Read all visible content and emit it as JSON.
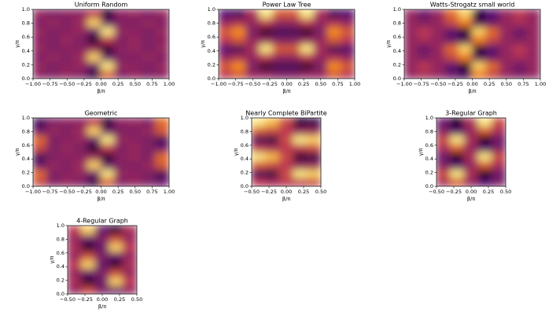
{
  "chart_data": [
    {
      "type": "heatmap",
      "title": "Uniform Random",
      "xlabel": "β/π",
      "ylabel": "γ/π",
      "cmap": "inferno",
      "zlim": [
        0,
        1
      ],
      "xlim": [
        -1,
        1
      ],
      "ylim": [
        0,
        1
      ],
      "xticks": [
        {
          "value": -1,
          "label": "−1.00"
        },
        {
          "value": -0.75,
          "label": "−0.75"
        },
        {
          "value": -0.5,
          "label": "−0.50"
        },
        {
          "value": -0.25,
          "label": "−0.25"
        },
        {
          "value": 0,
          "label": "0.00"
        },
        {
          "value": 0.25,
          "label": "0.25"
        },
        {
          "value": 0.5,
          "label": "0.50"
        },
        {
          "value": 0.75,
          "label": "0.75"
        },
        {
          "value": 1,
          "label": "1.00"
        }
      ],
      "yticks": [
        {
          "value": 0,
          "label": "0.0"
        },
        0.2,
        0.4,
        0.6,
        0.8,
        {
          "value": 1,
          "label": "1.0"
        }
      ],
      "z": [
        [
          0.38,
          0.35,
          0.4,
          0.35,
          0.15,
          0.6,
          0.35,
          0.4,
          0.35,
          0.38
        ],
        [
          0.4,
          0.35,
          0.38,
          0.4,
          0.3,
          0.95,
          0.4,
          0.38,
          0.35,
          0.4
        ],
        [
          0.36,
          0.4,
          0.35,
          0.42,
          0.9,
          0.3,
          0.35,
          0.36,
          0.4,
          0.36
        ],
        [
          0.4,
          0.35,
          0.38,
          0.38,
          0.4,
          0.1,
          0.38,
          0.4,
          0.35,
          0.4
        ],
        [
          0.38,
          0.35,
          0.4,
          0.35,
          0.1,
          0.5,
          0.35,
          0.4,
          0.35,
          0.38
        ],
        [
          0.4,
          0.35,
          0.38,
          0.4,
          0.3,
          0.95,
          0.4,
          0.38,
          0.35,
          0.4
        ],
        [
          0.36,
          0.4,
          0.35,
          0.42,
          0.9,
          0.3,
          0.35,
          0.36,
          0.4,
          0.36
        ],
        [
          0.4,
          0.35,
          0.38,
          0.38,
          0.5,
          0.1,
          0.38,
          0.4,
          0.35,
          0.4
        ]
      ]
    },
    {
      "type": "heatmap",
      "title": "Power Law Tree",
      "xlabel": "β/π",
      "ylabel": "γ/π",
      "cmap": "inferno",
      "zlim": [
        0,
        1
      ],
      "xlim": [
        -1,
        1
      ],
      "ylim": [
        0,
        1
      ],
      "xticks": [
        {
          "value": -1,
          "label": "−1.00"
        },
        {
          "value": -0.75,
          "label": "−0.75"
        },
        {
          "value": -0.5,
          "label": "−0.50"
        },
        {
          "value": -0.25,
          "label": "−0.25"
        },
        {
          "value": 0,
          "label": "0.00"
        },
        {
          "value": 0.25,
          "label": "0.25"
        },
        {
          "value": 0.5,
          "label": "0.50"
        },
        {
          "value": 0.75,
          "label": "0.75"
        },
        {
          "value": 1,
          "label": "1.00"
        }
      ],
      "yticks": [
        {
          "value": 0,
          "label": "0.0"
        },
        0.2,
        0.4,
        0.6,
        0.8,
        {
          "value": 1,
          "label": "1.0"
        }
      ],
      "z": [
        [
          0.5,
          0.6,
          0.4,
          0.4,
          0.35,
          0.35,
          0.4,
          0.4,
          0.6,
          0.5
        ],
        [
          0.6,
          0.75,
          0.35,
          0.1,
          0.2,
          0.2,
          0.1,
          0.35,
          0.75,
          0.6
        ],
        [
          0.4,
          0.45,
          0.4,
          0.5,
          0.4,
          0.4,
          0.5,
          0.4,
          0.45,
          0.4
        ],
        [
          0.25,
          0.2,
          0.45,
          0.95,
          0.6,
          0.6,
          0.95,
          0.45,
          0.2,
          0.25
        ],
        [
          0.5,
          0.6,
          0.4,
          0.4,
          0.35,
          0.35,
          0.4,
          0.4,
          0.6,
          0.5
        ],
        [
          0.6,
          0.75,
          0.35,
          0.1,
          0.2,
          0.2,
          0.1,
          0.35,
          0.75,
          0.6
        ],
        [
          0.4,
          0.45,
          0.4,
          0.5,
          0.4,
          0.4,
          0.5,
          0.4,
          0.45,
          0.4
        ],
        [
          0.25,
          0.2,
          0.45,
          0.95,
          0.6,
          0.6,
          0.95,
          0.45,
          0.2,
          0.25
        ]
      ]
    },
    {
      "type": "heatmap",
      "title": "Watts-Strogatz small world",
      "xlabel": "β/π",
      "ylabel": "γ/π",
      "cmap": "inferno",
      "zlim": [
        0,
        1
      ],
      "xlim": [
        -1,
        1
      ],
      "ylim": [
        0,
        1
      ],
      "xticks": [
        {
          "value": -1,
          "label": "−1.00"
        },
        {
          "value": -0.75,
          "label": "−0.75"
        },
        {
          "value": -0.5,
          "label": "−0.50"
        },
        {
          "value": -0.25,
          "label": "−0.25"
        },
        {
          "value": 0,
          "label": "0.00"
        },
        {
          "value": 0.25,
          "label": "0.25"
        },
        {
          "value": 0.5,
          "label": "0.50"
        },
        {
          "value": 0.75,
          "label": "0.75"
        },
        {
          "value": 1,
          "label": "1.00"
        }
      ],
      "yticks": [
        {
          "value": 0,
          "label": "0.0"
        },
        0.2,
        0.4,
        0.6,
        0.8,
        {
          "value": 1,
          "label": "1.0"
        }
      ],
      "z": [
        [
          0.4,
          0.45,
          0.4,
          0.3,
          0.2,
          0.7,
          0.55,
          0.4,
          0.35,
          0.4
        ],
        [
          0.4,
          0.5,
          0.4,
          0.25,
          0.1,
          0.9,
          0.65,
          0.4,
          0.3,
          0.4
        ],
        [
          0.4,
          0.35,
          0.4,
          0.55,
          0.7,
          0.2,
          0.3,
          0.4,
          0.45,
          0.4
        ],
        [
          0.4,
          0.3,
          0.4,
          0.65,
          0.9,
          0.1,
          0.25,
          0.4,
          0.5,
          0.4
        ],
        [
          0.4,
          0.45,
          0.4,
          0.3,
          0.2,
          0.7,
          0.55,
          0.4,
          0.35,
          0.4
        ],
        [
          0.4,
          0.5,
          0.4,
          0.25,
          0.1,
          0.9,
          0.65,
          0.4,
          0.3,
          0.4
        ],
        [
          0.4,
          0.35,
          0.4,
          0.55,
          0.7,
          0.2,
          0.3,
          0.4,
          0.45,
          0.4
        ],
        [
          0.4,
          0.3,
          0.4,
          0.65,
          0.9,
          0.1,
          0.25,
          0.4,
          0.5,
          0.4
        ]
      ]
    },
    {
      "type": "heatmap",
      "title": "Geometric",
      "xlabel": "β/π",
      "ylabel": "γ/π",
      "cmap": "inferno",
      "zlim": [
        0,
        1
      ],
      "xlim": [
        -1,
        1
      ],
      "ylim": [
        0,
        1
      ],
      "xticks": [
        {
          "value": -1,
          "label": "−1.00"
        },
        {
          "value": -0.75,
          "label": "−0.75"
        },
        {
          "value": -0.5,
          "label": "−0.50"
        },
        {
          "value": -0.25,
          "label": "−0.25"
        },
        {
          "value": 0,
          "label": "0.00"
        },
        {
          "value": 0.25,
          "label": "0.25"
        },
        {
          "value": 0.5,
          "label": "0.50"
        },
        {
          "value": 0.75,
          "label": "0.75"
        },
        {
          "value": 1,
          "label": "1.00"
        }
      ],
      "yticks": [
        {
          "value": 0,
          "label": "0.0"
        },
        0.2,
        0.4,
        0.6,
        0.8,
        {
          "value": 1,
          "label": "1.0"
        }
      ],
      "z": [
        [
          0.55,
          0.35,
          0.4,
          0.35,
          0.15,
          0.6,
          0.35,
          0.4,
          0.35,
          0.3
        ],
        [
          0.65,
          0.35,
          0.38,
          0.4,
          0.3,
          0.95,
          0.4,
          0.38,
          0.35,
          0.2
        ],
        [
          0.3,
          0.4,
          0.35,
          0.42,
          0.9,
          0.3,
          0.35,
          0.36,
          0.4,
          0.6
        ],
        [
          0.2,
          0.35,
          0.38,
          0.38,
          0.4,
          0.1,
          0.38,
          0.4,
          0.35,
          0.65
        ],
        [
          0.55,
          0.35,
          0.4,
          0.35,
          0.1,
          0.5,
          0.35,
          0.4,
          0.35,
          0.3
        ],
        [
          0.65,
          0.35,
          0.38,
          0.4,
          0.3,
          0.95,
          0.4,
          0.38,
          0.35,
          0.2
        ],
        [
          0.3,
          0.4,
          0.35,
          0.42,
          0.9,
          0.3,
          0.35,
          0.36,
          0.4,
          0.6
        ],
        [
          0.2,
          0.35,
          0.38,
          0.38,
          0.5,
          0.1,
          0.38,
          0.4,
          0.35,
          0.65
        ]
      ]
    },
    {
      "type": "heatmap",
      "title": "Nearly Complete BiPartite",
      "xlabel": "β/π",
      "ylabel": "γ/π",
      "cmap": "inferno",
      "zlim": [
        0,
        1
      ],
      "xlim": [
        -0.5,
        0.5
      ],
      "ylim": [
        0,
        1
      ],
      "xticks": [
        {
          "value": -0.5,
          "label": "−0.50"
        },
        {
          "value": -0.25,
          "label": "−0.25"
        },
        {
          "value": 0,
          "label": "0.00"
        },
        {
          "value": 0.25,
          "label": "0.25"
        },
        {
          "value": 0.5,
          "label": "0.50"
        }
      ],
      "yticks": [
        {
          "value": 0,
          "label": "0.0"
        },
        0.2,
        0.4,
        0.6,
        0.8,
        {
          "value": 1,
          "label": "1.0"
        }
      ],
      "z": [
        [
          0.5,
          0.45,
          0.5,
          0.5,
          0.55
        ],
        [
          0.2,
          0.15,
          0.55,
          0.95,
          0.9
        ],
        [
          0.6,
          0.55,
          0.5,
          0.4,
          0.4
        ],
        [
          0.95,
          0.85,
          0.55,
          0.1,
          0.15
        ],
        [
          0.5,
          0.45,
          0.5,
          0.5,
          0.55
        ],
        [
          0.2,
          0.15,
          0.55,
          0.95,
          0.9
        ],
        [
          0.6,
          0.55,
          0.5,
          0.4,
          0.4
        ],
        [
          0.95,
          0.85,
          0.55,
          0.1,
          0.15
        ]
      ]
    },
    {
      "type": "heatmap",
      "title": "3-Regular Graph",
      "xlabel": "β/π",
      "ylabel": "γ/π",
      "cmap": "inferno",
      "zlim": [
        0,
        1
      ],
      "xlim": [
        -0.5,
        0.5
      ],
      "ylim": [
        0,
        1
      ],
      "xticks": [
        {
          "value": -0.5,
          "label": "−0.50"
        },
        {
          "value": -0.25,
          "label": "−0.25"
        },
        {
          "value": 0,
          "label": "0.00"
        },
        {
          "value": 0.25,
          "label": "0.25"
        },
        {
          "value": 0.5,
          "label": "0.50"
        }
      ],
      "yticks": [
        {
          "value": 0,
          "label": "0.0"
        },
        0.2,
        0.4,
        0.6,
        0.8,
        {
          "value": 1,
          "label": "1.0"
        }
      ],
      "z": [
        [
          0.45,
          0.6,
          0.4,
          0.25,
          0.35
        ],
        [
          0.55,
          0.95,
          0.45,
          0.05,
          0.3
        ],
        [
          0.35,
          0.25,
          0.4,
          0.6,
          0.45
        ],
        [
          0.3,
          0.05,
          0.45,
          0.95,
          0.55
        ],
        [
          0.45,
          0.6,
          0.4,
          0.25,
          0.35
        ],
        [
          0.55,
          0.95,
          0.45,
          0.05,
          0.3
        ],
        [
          0.35,
          0.25,
          0.4,
          0.6,
          0.45
        ],
        [
          0.3,
          0.05,
          0.45,
          0.95,
          0.55
        ]
      ]
    },
    {
      "type": "heatmap",
      "title": "4-Regular Graph",
      "xlabel": "β/π",
      "ylabel": "γ/π",
      "cmap": "inferno",
      "zlim": [
        0,
        1
      ],
      "xlim": [
        -0.5,
        0.5
      ],
      "ylim": [
        0,
        1
      ],
      "xticks": [
        {
          "value": -0.5,
          "label": "−0.50"
        },
        {
          "value": -0.25,
          "label": "−0.25"
        },
        {
          "value": 0,
          "label": "0.00"
        },
        {
          "value": 0.25,
          "label": "0.25"
        },
        {
          "value": 0.5,
          "label": "0.50"
        }
      ],
      "yticks": [
        {
          "value": 0,
          "label": "0.0"
        },
        0.2,
        0.4,
        0.6,
        0.8,
        {
          "value": 1,
          "label": "1.0"
        }
      ],
      "z": [
        [
          0.4,
          0.55,
          0.35,
          0.3,
          0.4
        ],
        [
          0.45,
          0.1,
          0.3,
          0.9,
          0.5
        ],
        [
          0.4,
          0.3,
          0.35,
          0.55,
          0.4
        ],
        [
          0.5,
          0.9,
          0.3,
          0.1,
          0.45
        ],
        [
          0.4,
          0.55,
          0.35,
          0.3,
          0.4
        ],
        [
          0.45,
          0.1,
          0.3,
          0.9,
          0.5
        ],
        [
          0.4,
          0.3,
          0.35,
          0.55,
          0.4
        ],
        [
          0.5,
          0.9,
          0.3,
          0.1,
          0.45
        ]
      ]
    }
  ]
}
